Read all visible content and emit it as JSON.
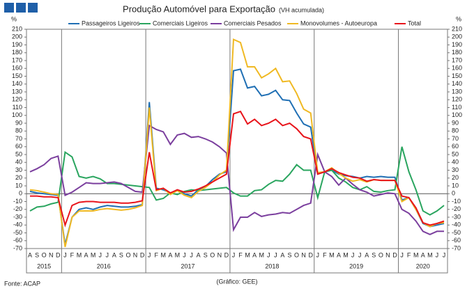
{
  "chart_data": {
    "type": "line",
    "title": "Produção Automóvel para Exportação",
    "subtitle": "(VH acumulada)",
    "y_label": "%",
    "y2_label": "%",
    "source": "Fonte: ACAP",
    "credit": "(Gráfico: GEE)",
    "categories": [
      "A",
      "S",
      "O",
      "N",
      "D",
      "J",
      "F",
      "M",
      "A",
      "M",
      "J",
      "J",
      "A",
      "S",
      "O",
      "N",
      "D",
      "J",
      "F",
      "M",
      "A",
      "M",
      "J",
      "J",
      "A",
      "S",
      "O",
      "N",
      "D",
      "J",
      "F",
      "M",
      "A",
      "M",
      "J",
      "J",
      "A",
      "S",
      "O",
      "N",
      "D",
      "J",
      "F",
      "M",
      "A",
      "M",
      "J",
      "J",
      "A",
      "S",
      "O",
      "N",
      "D",
      "J",
      "F",
      "M",
      "A",
      "M",
      "J",
      "J"
    ],
    "year_groups": [
      {
        "label": "2015",
        "count": 5
      },
      {
        "label": "2016",
        "count": 12
      },
      {
        "label": "2017",
        "count": 12
      },
      {
        "label": "2018",
        "count": 12
      },
      {
        "label": "2019",
        "count": 12
      },
      {
        "label": "2020",
        "count": 7
      }
    ],
    "ylim": [
      -70,
      210
    ],
    "yticks": [
      -70,
      -60,
      -50,
      -40,
      -30,
      -20,
      -10,
      0,
      10,
      20,
      30,
      40,
      50,
      60,
      70,
      80,
      90,
      100,
      110,
      120,
      130,
      140,
      150,
      160,
      170,
      180,
      190,
      200,
      210
    ],
    "series": [
      {
        "name": "Passageiros Ligeiros",
        "color": "#1f6fb4",
        "values": [
          3,
          1,
          0,
          -1,
          -2,
          -65,
          -30,
          -20,
          -18,
          -20,
          -17,
          -15,
          -16,
          -17,
          -17,
          -16,
          -14,
          117,
          7,
          5,
          1,
          4,
          0,
          -3,
          5,
          9,
          18,
          25,
          28,
          157,
          159,
          135,
          137,
          125,
          127,
          132,
          120,
          119,
          103,
          89,
          85,
          25,
          28,
          30,
          25,
          23,
          22,
          20,
          22,
          21,
          22,
          21,
          21,
          -8,
          -5,
          -20,
          -38,
          -42,
          -40,
          -38
        ]
      },
      {
        "name": "Comerciais Ligeiros",
        "color": "#2aa55f",
        "values": [
          -22,
          -17,
          -16,
          -13,
          -11,
          53,
          47,
          22,
          20,
          22,
          19,
          13,
          13,
          12,
          11,
          10,
          9,
          8,
          -8,
          -6,
          1,
          -1,
          3,
          5,
          4,
          5,
          6,
          7,
          8,
          1,
          -3,
          -3,
          4,
          5,
          12,
          17,
          16,
          25,
          37,
          30,
          30,
          -5,
          28,
          30,
          20,
          15,
          8,
          5,
          9,
          3,
          2,
          4,
          5,
          60,
          28,
          5,
          -22,
          -27,
          -22,
          -15
        ]
      },
      {
        "name": "Comerciais Pesados",
        "color": "#7b3f9e",
        "values": [
          28,
          32,
          37,
          45,
          48,
          -2,
          2,
          8,
          14,
          13,
          13,
          14,
          15,
          13,
          8,
          3,
          2,
          87,
          82,
          79,
          63,
          75,
          77,
          72,
          73,
          70,
          66,
          60,
          52,
          -46,
          -30,
          -30,
          -24,
          -29,
          -27,
          -26,
          -24,
          -25,
          -20,
          -15,
          -12,
          50,
          28,
          22,
          11,
          20,
          12,
          5,
          2,
          -3,
          -1,
          1,
          0,
          -20,
          -25,
          -35,
          -48,
          -52,
          -48,
          -48
        ]
      },
      {
        "name": "Monovolumes - Autoeuropa",
        "color": "#f0b923",
        "values": [
          5,
          4,
          2,
          0,
          -1,
          -68,
          -30,
          -22,
          -22,
          -22,
          -20,
          -19,
          -20,
          -21,
          -20,
          -18,
          -15,
          110,
          4,
          7,
          -1,
          4,
          -2,
          -5,
          3,
          8,
          15,
          24,
          30,
          197,
          193,
          162,
          162,
          148,
          153,
          160,
          143,
          144,
          128,
          108,
          103,
          27,
          28,
          33,
          26,
          20,
          16,
          18,
          15,
          18,
          17,
          17,
          17,
          -10,
          -5,
          -20,
          -37,
          -42,
          -38,
          -37
        ]
      },
      {
        "name": "Total",
        "color": "#e8141b",
        "values": [
          -3,
          -3,
          -4,
          -4,
          -5,
          -40,
          -15,
          -11,
          -10,
          -10,
          -11,
          -11,
          -11,
          -12,
          -12,
          -11,
          -9,
          53,
          5,
          7,
          1,
          5,
          2,
          3,
          6,
          10,
          15,
          20,
          25,
          102,
          105,
          89,
          95,
          87,
          90,
          95,
          87,
          90,
          83,
          73,
          70,
          25,
          28,
          32,
          27,
          24,
          21,
          20,
          16,
          18,
          17,
          17,
          17,
          -3,
          -5,
          -18,
          -37,
          -40,
          -38,
          -35
        ]
      }
    ]
  }
}
